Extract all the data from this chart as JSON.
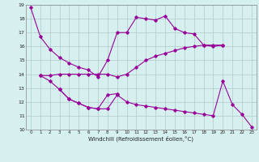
{
  "line1_x": [
    0,
    1,
    2,
    3,
    4,
    5,
    6,
    7,
    8,
    9,
    10,
    11,
    12,
    13,
    14,
    15,
    16,
    17,
    18,
    19,
    20
  ],
  "line1_y": [
    18.8,
    16.7,
    15.8,
    15.2,
    14.8,
    14.5,
    14.3,
    13.8,
    15.0,
    17.0,
    17.0,
    18.1,
    18.0,
    17.9,
    18.2,
    17.3,
    17.0,
    16.9,
    16.1,
    16.0,
    16.1
  ],
  "line2_x": [
    1,
    2,
    3,
    4,
    5,
    6,
    7,
    8,
    9,
    10,
    11,
    12,
    13,
    14,
    15,
    16,
    17,
    18,
    19,
    20
  ],
  "line2_y": [
    13.9,
    13.9,
    14.0,
    14.0,
    14.0,
    14.0,
    14.0,
    14.0,
    13.8,
    14.0,
    14.5,
    15.0,
    15.3,
    15.5,
    15.7,
    15.9,
    16.0,
    16.1,
    16.1,
    16.1
  ],
  "line3_x": [
    1,
    2,
    3,
    4,
    5,
    6,
    7,
    8,
    9,
    10,
    11,
    12,
    13,
    14,
    15,
    16,
    17,
    18,
    19,
    20,
    21,
    22,
    23
  ],
  "line3_y": [
    13.9,
    13.5,
    12.9,
    12.2,
    11.9,
    11.6,
    11.5,
    11.5,
    12.5,
    12.0,
    11.8,
    11.7,
    11.6,
    11.5,
    11.4,
    11.3,
    11.2,
    11.1,
    11.0,
    13.5,
    11.8,
    11.1,
    10.2
  ],
  "line4_x": [
    3,
    4,
    5,
    6,
    7,
    8,
    9
  ],
  "line4_y": [
    12.9,
    12.2,
    11.9,
    11.6,
    11.5,
    12.5,
    12.6
  ],
  "color": "#990099",
  "bg_color": "#d6f0f0",
  "grid_color": "#b0c8c8",
  "xlabel": "Windchill (Refroidissement éolien,°C)",
  "xlim": [
    -0.5,
    23.5
  ],
  "ylim": [
    10,
    19
  ],
  "yticks": [
    10,
    11,
    12,
    13,
    14,
    15,
    16,
    17,
    18,
    19
  ],
  "xticks": [
    0,
    1,
    2,
    3,
    4,
    5,
    6,
    7,
    8,
    9,
    10,
    11,
    12,
    13,
    14,
    15,
    16,
    17,
    18,
    19,
    20,
    21,
    22,
    23
  ]
}
